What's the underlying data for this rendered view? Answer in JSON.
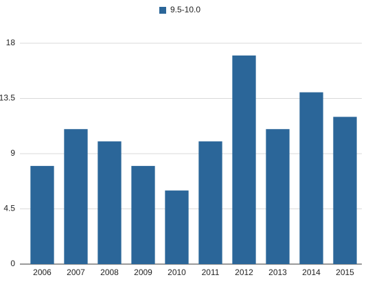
{
  "chart_data": {
    "type": "bar",
    "categories": [
      "2006",
      "2007",
      "2008",
      "2009",
      "2010",
      "2011",
      "2012",
      "2013",
      "2014",
      "2015"
    ],
    "series": [
      {
        "name": "9.5-10.0",
        "color": "#2b6699",
        "values": [
          8,
          11,
          10,
          8,
          6,
          10,
          17,
          11,
          14,
          12
        ]
      }
    ],
    "ylim": [
      0,
      18
    ],
    "yticks": [
      0,
      4.5,
      9,
      13.5,
      18
    ],
    "grid": true,
    "legend": "top"
  }
}
